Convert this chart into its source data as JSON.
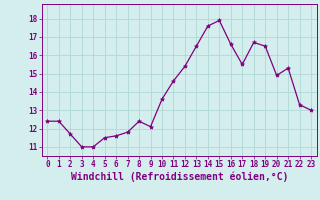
{
  "x": [
    0,
    1,
    2,
    3,
    4,
    5,
    6,
    7,
    8,
    9,
    10,
    11,
    12,
    13,
    14,
    15,
    16,
    17,
    18,
    19,
    20,
    21,
    22,
    23
  ],
  "y": [
    12.4,
    12.4,
    11.7,
    11.0,
    11.0,
    11.5,
    11.6,
    11.8,
    12.4,
    12.1,
    13.6,
    14.6,
    15.4,
    16.5,
    17.6,
    17.9,
    16.6,
    15.5,
    16.7,
    16.5,
    14.9,
    15.3,
    13.3,
    13.0
  ],
  "line_color": "#800080",
  "marker": "*",
  "marker_size": 3,
  "bg_color": "#d4eeed",
  "grid_color": "#aed8d5",
  "xlabel": "Windchill (Refroidissement éolien,°C)",
  "xlabel_fontsize": 7,
  "ylim": [
    10.5,
    18.8
  ],
  "xlim": [
    -0.5,
    23.5
  ],
  "yticks": [
    11,
    12,
    13,
    14,
    15,
    16,
    17,
    18
  ],
  "xtick_labels": [
    "0",
    "1",
    "2",
    "3",
    "4",
    "5",
    "6",
    "7",
    "8",
    "9",
    "10",
    "11",
    "12",
    "13",
    "14",
    "15",
    "16",
    "17",
    "18",
    "19",
    "20",
    "21",
    "22",
    "23"
  ],
  "tick_fontsize": 5.5
}
